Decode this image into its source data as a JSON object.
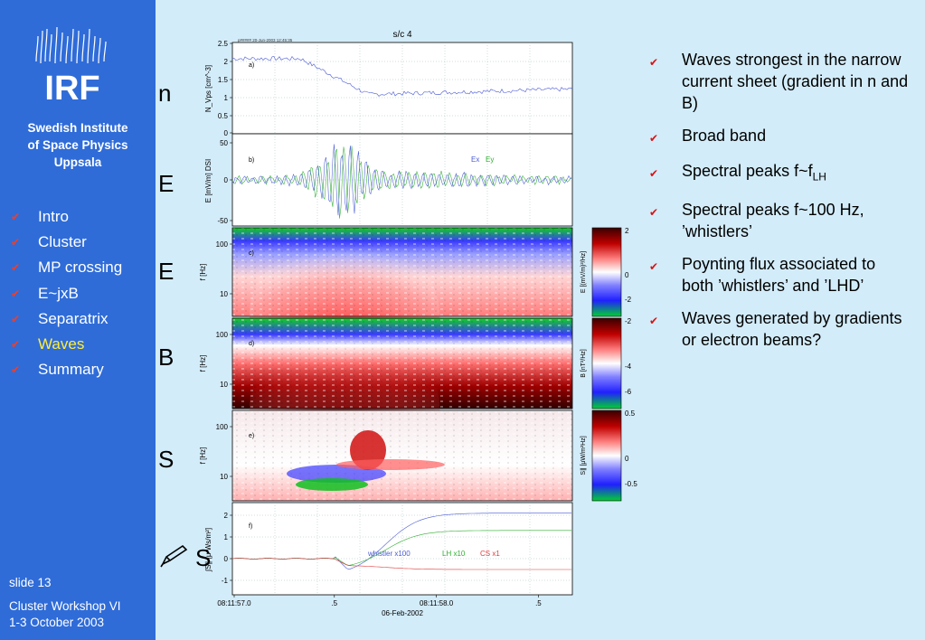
{
  "sidebar": {
    "logo_text": "IRF",
    "institute": [
      "Swedish Institute",
      "of Space Physics",
      "Uppsala"
    ],
    "nav": [
      {
        "label": "Intro",
        "active": false
      },
      {
        "label": "Cluster",
        "active": false
      },
      {
        "label": "MP crossing",
        "active": false
      },
      {
        "label": "E~jxB",
        "active": false
      },
      {
        "label": "Separatrix",
        "active": false
      },
      {
        "label": "Waves",
        "active": true
      },
      {
        "label": "Summary",
        "active": false
      }
    ],
    "slide_label": "slide 13",
    "footer_line1": "Cluster Workshop VI",
    "footer_line2": "1-3 October 2003"
  },
  "row_letters": [
    "n",
    "E",
    "E",
    "B",
    "S",
    "S"
  ],
  "figure": {
    "title": "s/c 4",
    "header_small": "p##### 20-Jun-2003 12:45:35",
    "panels": {
      "a": {
        "label": "a)",
        "ylabel": "N_Vps [cm^-3]",
        "ticks": [
          "2.5",
          "2",
          "1.5",
          "1",
          "0.5",
          "0"
        ]
      },
      "b": {
        "label": "b)",
        "ylabel": "E [mV/m] DSI",
        "ticks": [
          "50",
          "0",
          "-50"
        ],
        "legend": [
          "Ex",
          "Ey"
        ]
      },
      "c": {
        "label": "c)",
        "ylabel": "f [Hz]",
        "ticks": [
          "100",
          "10"
        ],
        "cbar_label": "E [(mV/m)²/Hz]",
        "cbar_ticks": [
          "2",
          "0",
          "-2"
        ]
      },
      "d": {
        "label": "d)",
        "ylabel": "f [Hz]",
        "ticks": [
          "100",
          "10"
        ],
        "cbar_label": "B [nT²/Hz]",
        "cbar_ticks": [
          "-2",
          "-4",
          "-6"
        ]
      },
      "e": {
        "label": "e)",
        "ylabel": "f [Hz]",
        "ticks": [
          "100",
          "10"
        ],
        "cbar_label": "S∥ [μW/m²Hz]",
        "cbar_ticks": [
          "0.5",
          "0",
          "-0.5"
        ]
      },
      "f": {
        "label": "f)",
        "ylabel": "∫S∥ [μ Ws/m²]",
        "ticks": [
          "2",
          "1",
          "0",
          "-1"
        ],
        "legend": [
          "whistler x100",
          "LH x10",
          "CS x1"
        ]
      }
    },
    "xticks": [
      "08:11:57.0",
      ".5",
      "08:11:58.0",
      ".5"
    ],
    "xdate": "06-Feb-2002",
    "colors": {
      "line_blue": "#4a5bd6",
      "line_green": "#2fae2f",
      "line_red": "#e23a3a"
    }
  },
  "bullets": [
    {
      "text": "Waves strongest in the narrow current sheet (gradient in n and B)"
    },
    {
      "text": "Broad band"
    },
    {
      "text": "Spectral peaks f~f",
      "sub": "LH"
    },
    {
      "text": "Spectral peaks f~100 Hz, ’whistlers’"
    },
    {
      "text": "Poynting flux associated to both ’whistlers’ and ’LHD’"
    },
    {
      "text": "Waves generated by gradients or electron beams?"
    }
  ],
  "icons": {
    "check": "check-icon",
    "pencil": "pencil-icon"
  }
}
